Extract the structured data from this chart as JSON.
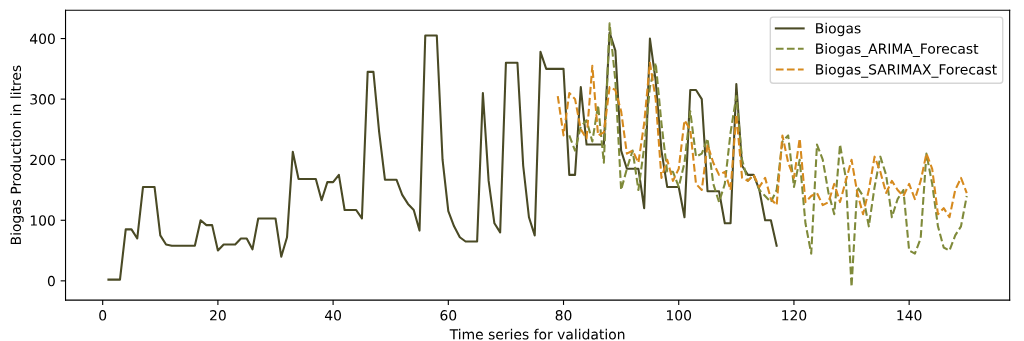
{
  "chart_data": {
    "type": "line",
    "xlabel": "Time series for validation",
    "ylabel": "Biogas Production in litres",
    "xlim": [
      -6.45,
      157.45
    ],
    "xticks": [
      0,
      20,
      40,
      60,
      80,
      100,
      120,
      140
    ],
    "ylim": [
      -31.75,
      446.75
    ],
    "yticks": [
      0,
      100,
      200,
      300,
      400
    ],
    "grid": false,
    "legend": "top right",
    "series": [
      {
        "name": "Biogas",
        "color": "#4a4a25",
        "line_style": "solid",
        "x": [
          1,
          2,
          3,
          4,
          5,
          6,
          7,
          8,
          9,
          10,
          11,
          12,
          13,
          14,
          15,
          16,
          17,
          18,
          19,
          20,
          21,
          22,
          23,
          24,
          25,
          26,
          27,
          28,
          29,
          30,
          31,
          32,
          33,
          34,
          35,
          36,
          37,
          38,
          39,
          40,
          41,
          42,
          43,
          44,
          45,
          46,
          47,
          48,
          49,
          50,
          51,
          52,
          53,
          54,
          55,
          56,
          57,
          58,
          59,
          60,
          61,
          62,
          63,
          64,
          65,
          66,
          67,
          68,
          69,
          70,
          71,
          72,
          73,
          74,
          75,
          76,
          77,
          78,
          79,
          80,
          81,
          82,
          83,
          84,
          85,
          86,
          87,
          88,
          89,
          90,
          91,
          92,
          93,
          94,
          95,
          96,
          97,
          98,
          99,
          100,
          101,
          102,
          103,
          104,
          105,
          106,
          107,
          108,
          109,
          110,
          111,
          112,
          113,
          114,
          115,
          116,
          117
        ],
        "values": [
          2,
          2,
          2,
          85,
          85,
          70,
          155,
          155,
          155,
          75,
          60,
          58,
          58,
          58,
          58,
          58,
          100,
          92,
          92,
          50,
          60,
          60,
          60,
          70,
          70,
          52,
          103,
          103,
          103,
          103,
          40,
          72,
          213,
          168,
          168,
          168,
          168,
          133,
          163,
          163,
          175,
          117,
          117,
          117,
          103,
          345,
          345,
          245,
          167,
          167,
          167,
          142,
          127,
          117,
          83,
          405,
          405,
          405,
          200,
          115,
          90,
          72,
          65,
          65,
          65,
          310,
          165,
          95,
          80,
          360,
          360,
          360,
          190,
          105,
          75,
          378,
          350,
          350,
          350,
          350,
          175,
          175,
          320,
          225,
          225,
          225,
          225,
          410,
          380,
          215,
          185,
          185,
          185,
          120,
          400,
          330,
          215,
          155,
          155,
          155,
          105,
          315,
          315,
          300,
          148,
          148,
          148,
          95,
          95,
          325,
          190,
          175,
          175,
          150,
          100,
          100,
          58
        ]
      },
      {
        "name": "Biogas_ARIMA_Forecast",
        "color": "#7f8a3a",
        "line_style": "dashed",
        "x": [
          81,
          82,
          83,
          84,
          85,
          86,
          87,
          88,
          89,
          90,
          91,
          92,
          93,
          94,
          95,
          96,
          97,
          98,
          99,
          100,
          101,
          102,
          103,
          104,
          105,
          106,
          107,
          108,
          109,
          110,
          111,
          112,
          113,
          114,
          115,
          116,
          117,
          118,
          119,
          120,
          121,
          122,
          123,
          124,
          125,
          126,
          127,
          128,
          129,
          130,
          131,
          132,
          133,
          134,
          135,
          136,
          137,
          138,
          139,
          140,
          141,
          142,
          143,
          144,
          145,
          146,
          147,
          148,
          149,
          150
        ],
        "values": [
          240,
          215,
          255,
          265,
          230,
          290,
          195,
          425,
          330,
          150,
          185,
          215,
          150,
          220,
          320,
          360,
          260,
          180,
          180,
          155,
          195,
          280,
          205,
          210,
          235,
          160,
          130,
          160,
          245,
          305,
          200,
          165,
          175,
          150,
          140,
          130,
          150,
          230,
          240,
          155,
          200,
          95,
          45,
          225,
          200,
          145,
          110,
          225,
          170,
          -10,
          155,
          140,
          90,
          155,
          205,
          175,
          105,
          135,
          150,
          50,
          45,
          70,
          210,
          160,
          90,
          55,
          50,
          75,
          90,
          140
        ]
      },
      {
        "name": "Biogas_SARIMAX_Forecast",
        "color": "#d68a1e",
        "line_style": "dashed",
        "x": [
          79,
          80,
          81,
          82,
          83,
          84,
          85,
          86,
          87,
          88,
          89,
          90,
          91,
          92,
          93,
          94,
          95,
          96,
          97,
          98,
          99,
          100,
          101,
          102,
          103,
          104,
          105,
          106,
          107,
          108,
          109,
          110,
          111,
          112,
          113,
          114,
          115,
          116,
          117,
          118,
          119,
          120,
          121,
          122,
          123,
          124,
          125,
          126,
          127,
          128,
          129,
          130,
          131,
          132,
          133,
          134,
          135,
          136,
          137,
          138,
          139,
          140,
          141,
          142,
          143,
          144,
          145,
          146,
          147,
          148,
          149,
          150
        ],
        "values": [
          305,
          240,
          310,
          300,
          250,
          235,
          355,
          240,
          245,
          320,
          315,
          280,
          210,
          215,
          195,
          260,
          360,
          300,
          170,
          200,
          165,
          185,
          265,
          250,
          160,
          150,
          225,
          195,
          175,
          180,
          150,
          275,
          170,
          165,
          175,
          155,
          170,
          135,
          125,
          240,
          195,
          170,
          235,
          130,
          140,
          145,
          125,
          130,
          160,
          130,
          165,
          200,
          145,
          110,
          150,
          205,
          180,
          145,
          165,
          150,
          140,
          160,
          135,
          165,
          210,
          185,
          110,
          120,
          105,
          150,
          170,
          145
        ]
      }
    ]
  }
}
